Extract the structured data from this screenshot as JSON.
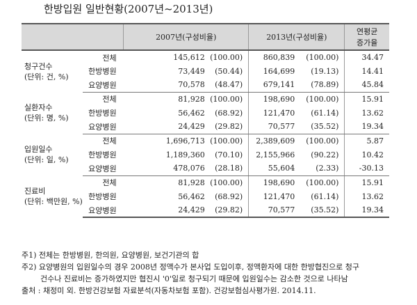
{
  "title": "한방입원 일반현황(2007년~2013년)",
  "header": {
    "col2007": "2007년(구성비율)",
    "col2013": "2013년(구성비율)",
    "growth_line1": "연평균",
    "growth_line2": "증가율"
  },
  "groups": [
    {
      "label_line1": "청구건수",
      "label_line2": "(단위: 건, %)",
      "rows": [
        {
          "sub": "전체",
          "v2007": "145,612",
          "p2007": "(100.00)",
          "v2013": "860,839",
          "p2013": "(100.00)",
          "growth": "34.47"
        },
        {
          "sub": "한방병원",
          "v2007": "73,449",
          "p2007": "(50.44)",
          "v2013": "164,699",
          "p2013": "(19.13)",
          "growth": "14.41"
        },
        {
          "sub": "요양병원",
          "v2007": "70,578",
          "p2007": "(48.47)",
          "v2013": "679,141",
          "p2013": "(78.89)",
          "growth": "45.84"
        }
      ]
    },
    {
      "label_line1": "실환자수",
      "label_line2": "(단위: 명, %)",
      "rows": [
        {
          "sub": "전체",
          "v2007": "81,928",
          "p2007": "(100.00)",
          "v2013": "198,690",
          "p2013": "(100.00)",
          "growth": "15.91"
        },
        {
          "sub": "한방병원",
          "v2007": "56,462",
          "p2007": "(68.92)",
          "v2013": "121,470",
          "p2013": "(61.14)",
          "growth": "13.62"
        },
        {
          "sub": "요양병원",
          "v2007": "24,429",
          "p2007": "(29.82)",
          "v2013": "70,577",
          "p2013": "(35.52)",
          "growth": "19.34"
        }
      ]
    },
    {
      "label_line1": "입원일수",
      "label_line2": "(단위: 일, %)",
      "rows": [
        {
          "sub": "전체",
          "v2007": "1,696,713",
          "p2007": "(100.00)",
          "v2013": "2,389,609",
          "p2013": "(100.00)",
          "growth": "5.87"
        },
        {
          "sub": "한방병원",
          "v2007": "1,189,360",
          "p2007": "(70.10)",
          "v2013": "2,155,966",
          "p2013": "(90.22)",
          "growth": "10.42"
        },
        {
          "sub": "요양병원",
          "v2007": "478,076",
          "p2007": "(28.18)",
          "v2013": "55,604",
          "p2013": "(2.33)",
          "growth": "-30.13"
        }
      ]
    },
    {
      "label_line1": "진료비",
      "label_line2": "(단위: 백만원, %)",
      "rows": [
        {
          "sub": "전체",
          "v2007": "81,928",
          "p2007": "(100.00)",
          "v2013": "198,690",
          "p2013": "(100.00)",
          "growth": "15.91"
        },
        {
          "sub": "한방병원",
          "v2007": "56,462",
          "p2007": "(68.92)",
          "v2013": "121,470",
          "p2013": "(61.14)",
          "growth": "13.62"
        },
        {
          "sub": "요양병원",
          "v2007": "24,429",
          "p2007": "(29.82)",
          "v2013": "70,577",
          "p2013": "(35.52)",
          "growth": "19.34"
        }
      ]
    }
  ],
  "notes": {
    "note1": "주1) 전체는 한방병원, 한의원, 요양병원, 보건기관의 합",
    "note2a": "주2) 요양병원의 입원일수의 경우 2008년 정액수가 본사업 도입이후, 정액환자에 대한 한방협진으로 청구",
    "note2b": "건수나 진료비는 증가하였지만 협진시 '0'일로 청구되기 때문에 입원일수는 감소한 것으로 나타남",
    "source": "출처 : 채정미 외. 한방건강보험 자료분석(자동차보험 포함). 건강보험심사평가원. 2014.11."
  },
  "colors": {
    "header_bg": "#d9d9d9",
    "rule": "#555555"
  }
}
